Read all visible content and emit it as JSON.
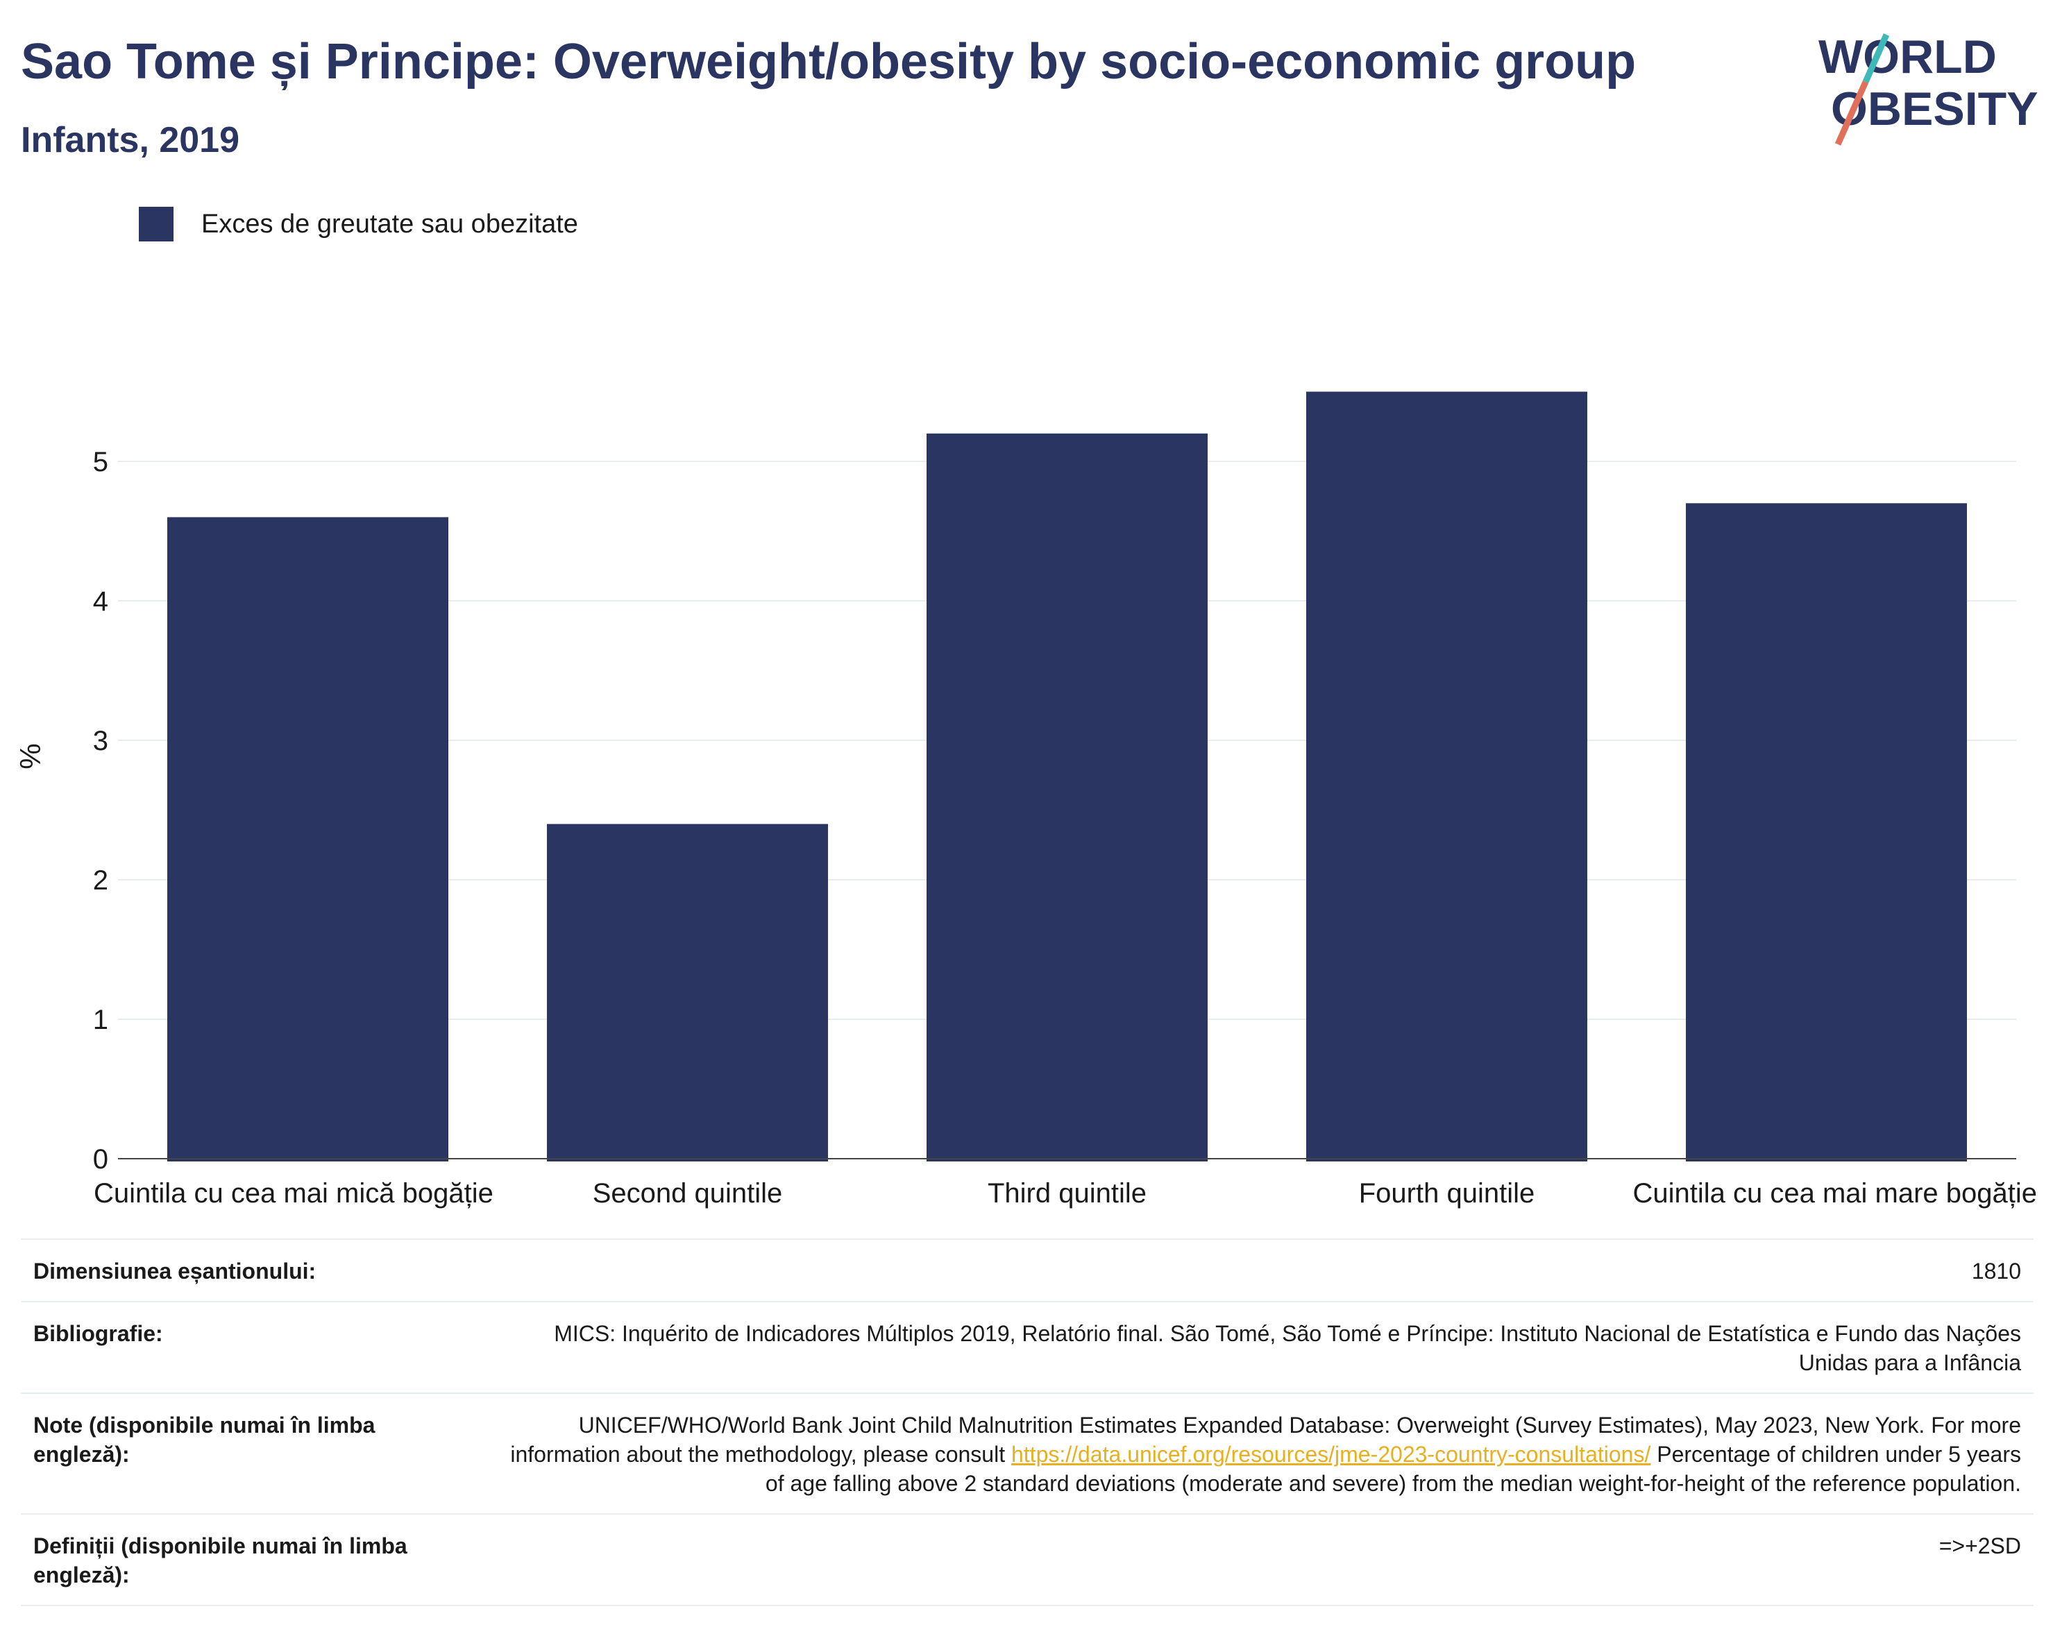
{
  "header": {
    "title": "Sao Tome și Principe: Overweight/obesity by socio-economic group",
    "subtitle": "Infants, 2019"
  },
  "logo": {
    "line1": "WORLD",
    "line2": "OBESITY",
    "colors": {
      "text": "#2b3561",
      "slash_teal": "#3fb8b8",
      "slash_red": "#e0705a"
    }
  },
  "legend": {
    "label": "Exces de greutate sau obezitate",
    "color": "#2b3561"
  },
  "chart_data": {
    "type": "bar",
    "title": "Sao Tome și Principe: Overweight/obesity by socio-economic group",
    "subtitle": "Infants, 2019",
    "categories": [
      "Cuintila cu cea mai mică bogăție",
      "Second quintile",
      "Third quintile",
      "Fourth quintile",
      "Cuintila cu cea mai mare bogăție"
    ],
    "series": [
      {
        "name": "Exces de greutate sau obezitate",
        "values": [
          4.6,
          2.4,
          5.2,
          5.5,
          4.7
        ],
        "color": "#2b3561"
      }
    ],
    "ylabel": "%",
    "ylim": [
      0,
      6
    ],
    "yticks": [
      0,
      1,
      2,
      3,
      4,
      5
    ],
    "grid": true,
    "legend_position": "top-left"
  },
  "meta": {
    "sample_size": {
      "label": "Dimensiunea eșantionului:",
      "value": "1810"
    },
    "bibliography": {
      "label": "Bibliografie:",
      "value": "MICS: Inquérito de Indicadores Múltiplos 2019, Relatório final. São Tomé, São Tomé e Príncipe: Instituto Nacional de Estatística e Fundo das Nações Unidas para a Infância"
    },
    "notes": {
      "label": "Note (disponibile numai în limba engleză):",
      "text_before": "UNICEF/WHO/World Bank Joint Child Malnutrition Estimates Expanded Database: Overweight (Survey Estimates), May 2023, New York. For more information about the methodology, please consult ",
      "link": "https://data.unicef.org/resources/jme-2023-country-consultations/",
      "text_after": " Percentage of children under 5 years of age falling above 2 standard deviations (moderate and severe) from the median weight-for-height of the reference population."
    },
    "definitions": {
      "label": "Definiții (disponibile numai în limba engleză):",
      "value": "=>+2SD"
    }
  }
}
